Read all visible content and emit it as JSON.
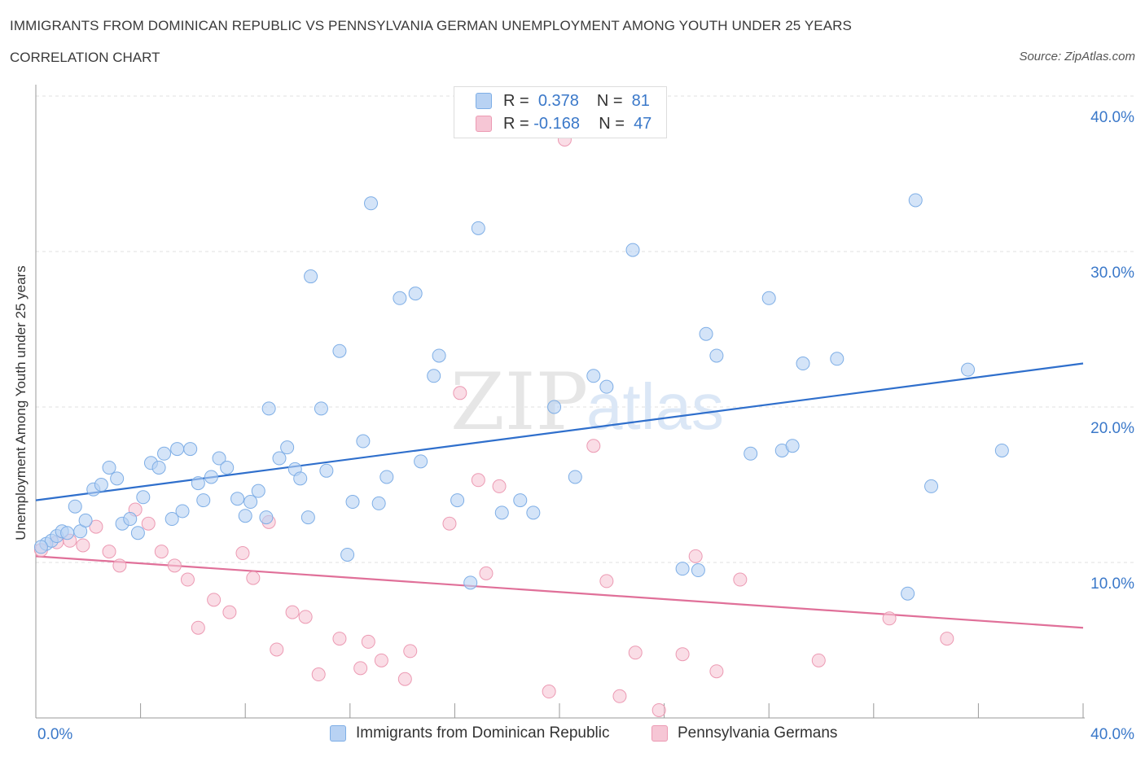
{
  "header": {
    "title": "IMMIGRANTS FROM DOMINICAN REPUBLIC VS PENNSYLVANIA GERMAN UNEMPLOYMENT AMONG YOUTH UNDER 25 YEARS",
    "subtitle": "CORRELATION CHART",
    "source": "Source: ZipAtlas.com"
  },
  "watermark": {
    "zip": "ZIP",
    "atlas": "atlas"
  },
  "colors": {
    "blue_fill": "#b8d2f3",
    "blue_stroke": "#7eaee6",
    "blue_line": "#2f6fcc",
    "pink_fill": "#f6c6d5",
    "pink_stroke": "#ec9ab3",
    "pink_line": "#e07099",
    "tick_text": "#3a78c9",
    "grid": "#e2e2e2"
  },
  "legend": {
    "rows": [
      {
        "r_label": "R =",
        "r_value": "0.378",
        "n_label": "N =",
        "n_value": "81"
      },
      {
        "r_label": "R =",
        "r_value": "-0.168",
        "n_label": "N =",
        "n_value": "47"
      }
    ]
  },
  "bottom_legend": {
    "items": [
      "Immigrants from Dominican Republic",
      "Pennsylvania Germans"
    ]
  },
  "chart_data": {
    "type": "scatter",
    "title": "IMMIGRANTS FROM DOMINICAN REPUBLIC VS PENNSYLVANIA GERMAN UNEMPLOYMENT AMONG YOUTH UNDER 25 YEARS",
    "xlabel": "",
    "ylabel": "Unemployment Among Youth under 25 years",
    "xlim": [
      0,
      40
    ],
    "ylim": [
      0,
      40
    ],
    "x_tick_labels": [
      "0.0%",
      "40.0%"
    ],
    "y_ticks": [
      10,
      20,
      30,
      40
    ],
    "y_tick_labels": [
      "10.0%",
      "20.0%",
      "30.0%",
      "40.0%"
    ],
    "grid": true,
    "legend_position": "top-center",
    "series": [
      {
        "name": "Immigrants from Dominican Republic",
        "color": "#b8d2f3",
        "trend": {
          "x": [
            0,
            40
          ],
          "y": [
            14.0,
            22.8
          ]
        },
        "points": [
          [
            0.4,
            11.2
          ],
          [
            0.6,
            11.4
          ],
          [
            0.8,
            11.7
          ],
          [
            1.0,
            12.0
          ],
          [
            1.2,
            11.9
          ],
          [
            1.7,
            12.0
          ],
          [
            1.5,
            13.6
          ],
          [
            1.9,
            12.7
          ],
          [
            2.2,
            14.7
          ],
          [
            2.5,
            15.0
          ],
          [
            2.8,
            16.1
          ],
          [
            3.1,
            15.4
          ],
          [
            3.3,
            12.5
          ],
          [
            3.6,
            12.8
          ],
          [
            3.9,
            11.9
          ],
          [
            4.1,
            14.2
          ],
          [
            4.4,
            16.4
          ],
          [
            4.7,
            16.1
          ],
          [
            4.9,
            17.0
          ],
          [
            5.2,
            12.8
          ],
          [
            5.4,
            17.3
          ],
          [
            5.6,
            13.3
          ],
          [
            5.9,
            17.3
          ],
          [
            6.2,
            15.1
          ],
          [
            6.4,
            14.0
          ],
          [
            6.7,
            15.5
          ],
          [
            7.0,
            16.7
          ],
          [
            7.3,
            16.1
          ],
          [
            7.7,
            14.1
          ],
          [
            8.0,
            13.0
          ],
          [
            8.2,
            13.9
          ],
          [
            8.5,
            14.6
          ],
          [
            8.8,
            12.9
          ],
          [
            8.9,
            19.9
          ],
          [
            9.3,
            16.7
          ],
          [
            9.6,
            17.4
          ],
          [
            9.9,
            16.0
          ],
          [
            10.1,
            15.4
          ],
          [
            10.4,
            12.9
          ],
          [
            10.5,
            28.4
          ],
          [
            10.9,
            19.9
          ],
          [
            11.1,
            15.9
          ],
          [
            11.6,
            23.6
          ],
          [
            11.9,
            10.5
          ],
          [
            12.1,
            13.9
          ],
          [
            12.5,
            17.8
          ],
          [
            12.8,
            33.1
          ],
          [
            13.1,
            13.8
          ],
          [
            13.4,
            15.5
          ],
          [
            13.9,
            27.0
          ],
          [
            14.5,
            27.3
          ],
          [
            14.7,
            16.5
          ],
          [
            15.2,
            22.0
          ],
          [
            15.4,
            23.3
          ],
          [
            16.1,
            14.0
          ],
          [
            16.6,
            8.7
          ],
          [
            16.9,
            31.5
          ],
          [
            17.8,
            13.2
          ],
          [
            18.5,
            14.0
          ],
          [
            19.0,
            13.2
          ],
          [
            19.8,
            20.0
          ],
          [
            20.6,
            15.5
          ],
          [
            21.3,
            22.0
          ],
          [
            21.8,
            21.3
          ],
          [
            22.8,
            30.1
          ],
          [
            24.7,
            9.6
          ],
          [
            25.3,
            9.5
          ],
          [
            25.6,
            24.7
          ],
          [
            26.0,
            23.3
          ],
          [
            27.3,
            17.0
          ],
          [
            28.0,
            27.0
          ],
          [
            28.5,
            17.2
          ],
          [
            28.9,
            17.5
          ],
          [
            29.3,
            22.8
          ],
          [
            30.6,
            23.1
          ],
          [
            33.3,
            8.0
          ],
          [
            33.6,
            33.3
          ],
          [
            34.2,
            14.9
          ],
          [
            35.6,
            22.4
          ],
          [
            36.9,
            17.2
          ],
          [
            0.2,
            11.0
          ]
        ]
      },
      {
        "name": "Pennsylvania Germans",
        "color": "#f6c6d5",
        "trend": {
          "x": [
            0,
            40
          ],
          "y": [
            10.4,
            5.8
          ]
        },
        "points": [
          [
            0.2,
            10.8
          ],
          [
            0.8,
            11.3
          ],
          [
            1.3,
            11.4
          ],
          [
            1.8,
            11.1
          ],
          [
            2.3,
            12.3
          ],
          [
            2.8,
            10.7
          ],
          [
            3.2,
            9.8
          ],
          [
            3.8,
            13.4
          ],
          [
            4.3,
            12.5
          ],
          [
            4.8,
            10.7
          ],
          [
            5.3,
            9.8
          ],
          [
            5.8,
            8.9
          ],
          [
            6.2,
            5.8
          ],
          [
            6.8,
            7.6
          ],
          [
            7.4,
            6.8
          ],
          [
            7.9,
            10.6
          ],
          [
            8.3,
            9.0
          ],
          [
            8.9,
            12.6
          ],
          [
            9.2,
            4.4
          ],
          [
            9.8,
            6.8
          ],
          [
            10.3,
            6.5
          ],
          [
            10.8,
            2.8
          ],
          [
            11.6,
            5.1
          ],
          [
            12.4,
            3.2
          ],
          [
            12.7,
            4.9
          ],
          [
            13.2,
            3.7
          ],
          [
            14.1,
            2.5
          ],
          [
            14.3,
            4.3
          ],
          [
            15.8,
            12.5
          ],
          [
            16.2,
            20.9
          ],
          [
            16.9,
            15.3
          ],
          [
            17.2,
            9.3
          ],
          [
            17.7,
            14.9
          ],
          [
            19.6,
            1.7
          ],
          [
            20.2,
            37.2
          ],
          [
            21.3,
            17.5
          ],
          [
            21.8,
            8.8
          ],
          [
            22.3,
            1.4
          ],
          [
            22.9,
            4.2
          ],
          [
            23.8,
            0.5
          ],
          [
            24.7,
            4.1
          ],
          [
            25.2,
            10.4
          ],
          [
            26.0,
            3.0
          ],
          [
            26.9,
            8.9
          ],
          [
            29.9,
            3.7
          ],
          [
            32.6,
            6.4
          ],
          [
            34.8,
            5.1
          ]
        ]
      }
    ]
  }
}
